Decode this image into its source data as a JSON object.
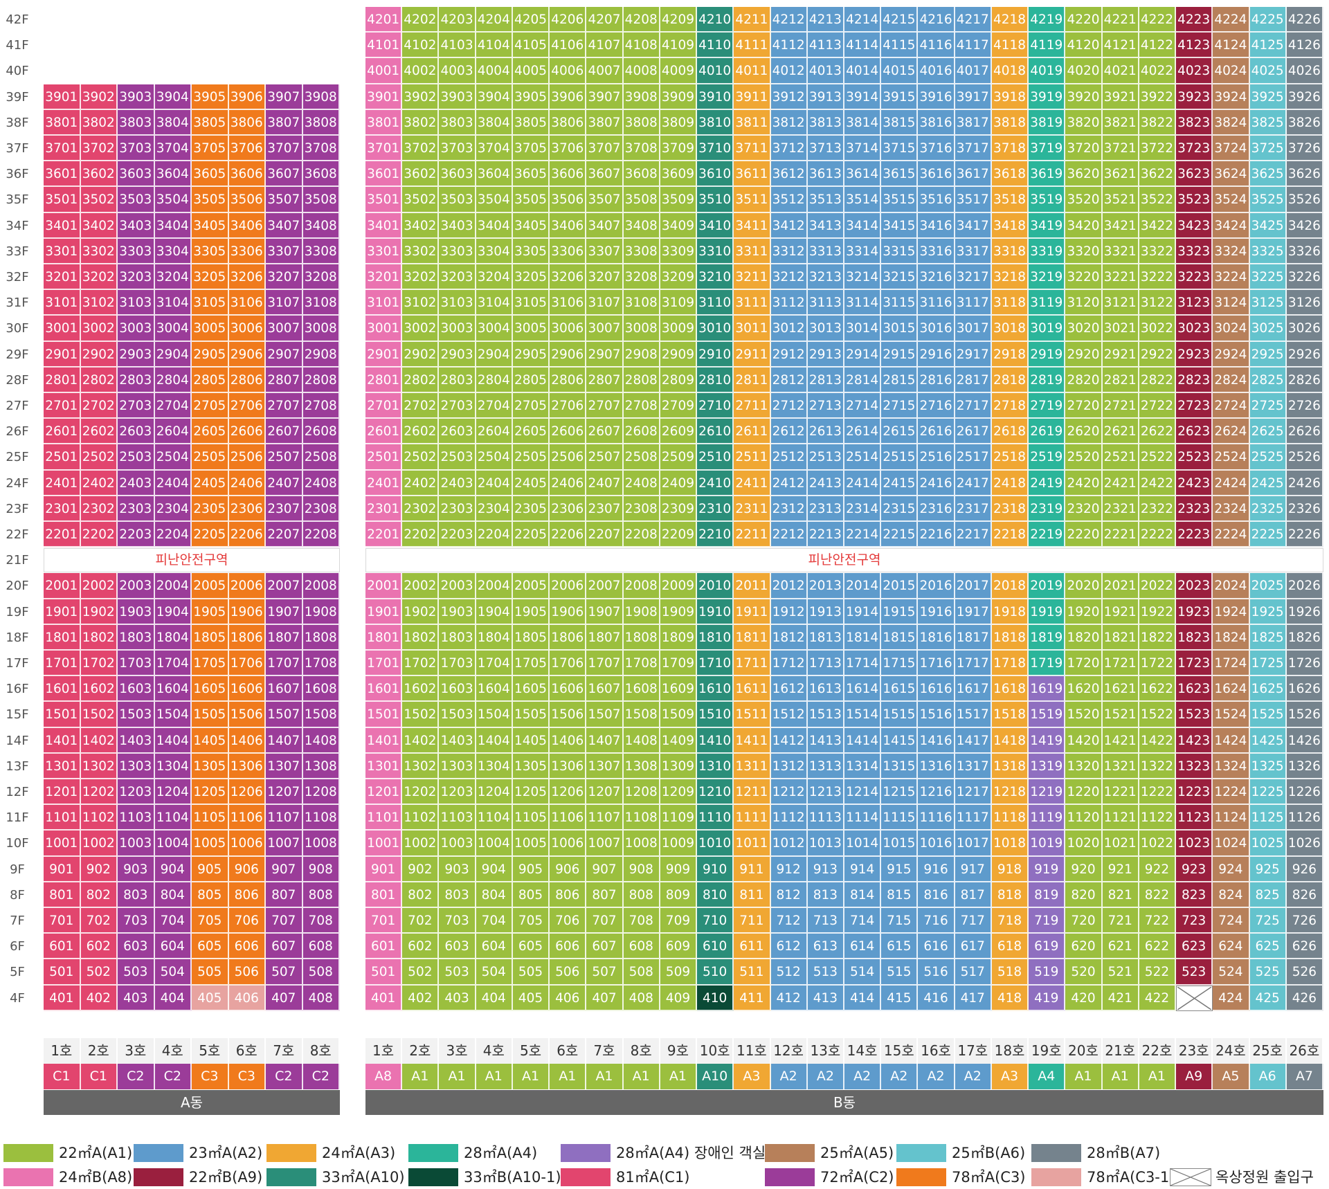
{
  "colors": {
    "A1": "#9bbf3e",
    "A2": "#5e9bcc",
    "A3": "#f0a733",
    "A4": "#2bb59a",
    "A4h": "#8f6fc0",
    "A5": "#b7805a",
    "A6": "#64c3cd",
    "A7": "#75838d",
    "A8": "#ea73b0",
    "A9": "#9a1f3e",
    "A10": "#2a8e79",
    "A10-1": "#0a4a36",
    "C1": "#e2456e",
    "C2": "#9b3c99",
    "C3": "#f07a1c",
    "C3-1": "#e7a3a0",
    "rooftop": "#ffffff"
  },
  "floors": [
    "42F",
    "41F",
    "40F",
    "39F",
    "38F",
    "37F",
    "36F",
    "35F",
    "34F",
    "33F",
    "32F",
    "31F",
    "30F",
    "29F",
    "28F",
    "27F",
    "26F",
    "25F",
    "24F",
    "23F",
    "22F",
    "21F",
    "20F",
    "19F",
    "18F",
    "17F",
    "16F",
    "15F",
    "14F",
    "13F",
    "12F",
    "11F",
    "10F",
    "9F",
    "8F",
    "7F",
    "6F",
    "5F",
    "4F"
  ],
  "refuge_label": "피난안전구역",
  "buildings": {
    "A": {
      "name": "A동",
      "ho_labels": [
        "1호",
        "2호",
        "3호",
        "4호",
        "5호",
        "6호",
        "7호",
        "8호"
      ],
      "types": [
        "C1",
        "C1",
        "C2",
        "C2",
        "C3",
        "C3",
        "C2",
        "C2"
      ],
      "top_floor": 39
    },
    "B": {
      "name": "B동",
      "ho_labels": [
        "1호",
        "2호",
        "3호",
        "4호",
        "5호",
        "6호",
        "7호",
        "8호",
        "9호",
        "10호",
        "11호",
        "12호",
        "13호",
        "14호",
        "15호",
        "16호",
        "17호",
        "18호",
        "19호",
        "20호",
        "21호",
        "22호",
        "23호",
        "24호",
        "25호",
        "26호"
      ],
      "types": [
        "A8",
        "A1",
        "A1",
        "A1",
        "A1",
        "A1",
        "A1",
        "A1",
        "A1",
        "A10",
        "A3",
        "A2",
        "A2",
        "A2",
        "A2",
        "A2",
        "A2",
        "A3",
        "A4",
        "A1",
        "A1",
        "A1",
        "A9",
        "A5",
        "A6",
        "A7"
      ],
      "top_floor": 42
    }
  },
  "special_units": {
    "A-4-5": "C3-1",
    "A-4-6": "C3-1",
    "B-4-10": "A10-1",
    "B-4-23": "rooftop",
    "B-16-19": "A4h",
    "B-15-19": "A4h",
    "B-14-19": "A4h",
    "B-13-19": "A4h",
    "B-12-19": "A4h",
    "B-11-19": "A4h",
    "B-10-19": "A4h",
    "B-9-19": "A4h",
    "B-8-19": "A4h",
    "B-7-19": "A4h",
    "B-6-19": "A4h",
    "B-5-19": "A4h",
    "B-4-19": "A4h"
  },
  "legend": [
    {
      "key": "A1",
      "label": "22㎡A(A1)"
    },
    {
      "key": "A2",
      "label": "23㎡A(A2)"
    },
    {
      "key": "A3",
      "label": "24㎡A(A3)"
    },
    {
      "key": "A4",
      "label": "28㎡A(A4)"
    },
    {
      "key": "A4h",
      "label": "28㎡A(A4) 장애인 객실"
    },
    {
      "key": "A5",
      "label": "25㎡A(A5)"
    },
    {
      "key": "A6",
      "label": "25㎡B(A6)"
    },
    {
      "key": "A7",
      "label": "28㎡B(A7)"
    },
    {
      "key": "A8",
      "label": "24㎡B(A8)"
    },
    {
      "key": "A9",
      "label": "22㎡B(A9)"
    },
    {
      "key": "A10",
      "label": "33㎡A(A10)"
    },
    {
      "key": "A10-1",
      "label": "33㎡B(A10-1)"
    },
    {
      "key": "C1",
      "label": "81㎡A(C1)"
    },
    {
      "key": "C2",
      "label": "72㎡A(C2)"
    },
    {
      "key": "C3",
      "label": "78㎡A(C3)"
    },
    {
      "key": "C3-1",
      "label": "78㎡A(C3-1)"
    },
    {
      "key": "rooftop",
      "label": "옥상정원 출입구"
    }
  ]
}
